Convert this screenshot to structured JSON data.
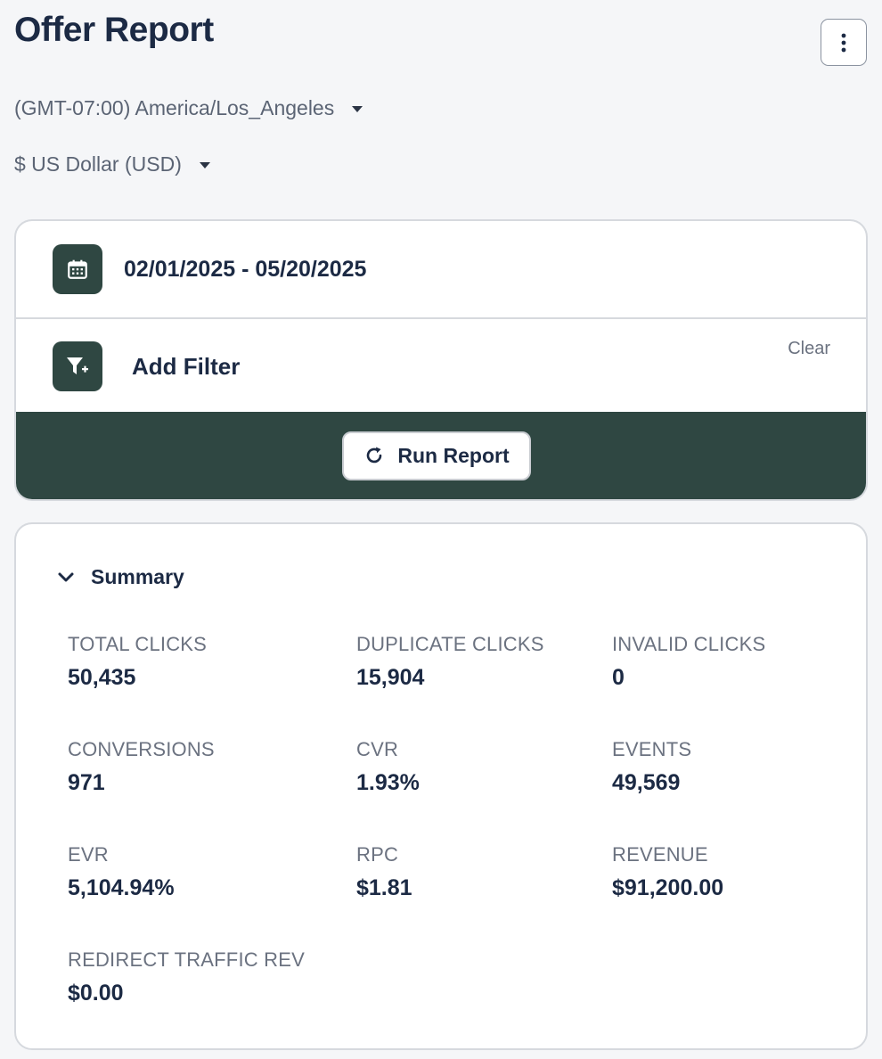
{
  "header": {
    "title": "Offer Report",
    "more_icon": "more-vertical-icon"
  },
  "settings": {
    "timezone": "(GMT-07:00) America/Los_Angeles",
    "currency": "$ US Dollar (USD)"
  },
  "filters": {
    "date_range": "02/01/2025 - 05/20/2025",
    "date_icon": "calendar-icon",
    "add_filter_label": "Add Filter",
    "add_filter_icon": "filter-add-icon",
    "clear_label": "Clear",
    "run_report_label": "Run Report",
    "run_report_icon": "refresh-icon"
  },
  "summary": {
    "title": "Summary",
    "stats": [
      {
        "label": "TOTAL CLICKS",
        "value": "50,435"
      },
      {
        "label": "DUPLICATE CLICKS",
        "value": "15,904"
      },
      {
        "label": "INVALID CLICKS",
        "value": "0"
      },
      {
        "label": "CONVERSIONS",
        "value": "971"
      },
      {
        "label": "CVR",
        "value": "1.93%"
      },
      {
        "label": "EVENTS",
        "value": "49,569"
      },
      {
        "label": "EVR",
        "value": "5,104.94%"
      },
      {
        "label": "RPC",
        "value": "$1.81"
      },
      {
        "label": "REVENUE",
        "value": "$91,200.00"
      },
      {
        "label": "REDIRECT TRAFFIC REV",
        "value": "$0.00"
      }
    ]
  },
  "colors": {
    "accent": "#2f4742",
    "text_primary": "#1c2a44",
    "text_secondary": "#6b7280"
  }
}
